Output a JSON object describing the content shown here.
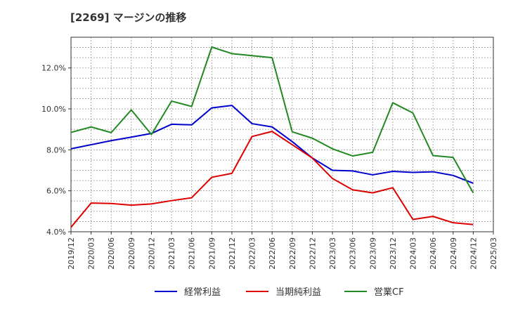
{
  "chart_data": {
    "type": "line",
    "title": "[2269]  マージンの推移",
    "xlabel": "",
    "ylabel": "",
    "x": [
      "2019/12",
      "2020/03",
      "2020/06",
      "2020/09",
      "2020/12",
      "2021/03",
      "2021/06",
      "2021/09",
      "2021/12",
      "2022/03",
      "2022/06",
      "2022/09",
      "2022/12",
      "2023/03",
      "2023/06",
      "2023/09",
      "2023/12",
      "2024/03",
      "2024/06",
      "2024/09",
      "2024/12",
      "2025/03"
    ],
    "ylim": [
      4.0,
      13.5
    ],
    "yticks": [
      4.0,
      6.0,
      8.0,
      10.0,
      12.0
    ],
    "ytick_labels": [
      "4.0%",
      "6.0%",
      "8.0%",
      "10.0%",
      "12.0%"
    ],
    "grid": true,
    "legend": "bottom",
    "series": [
      {
        "name": "経常利益",
        "color": "#0000cc",
        "values": [
          8.05,
          8.25,
          8.45,
          8.62,
          8.8,
          9.25,
          9.22,
          10.05,
          10.17,
          9.28,
          9.12,
          8.4,
          7.6,
          7.0,
          6.97,
          6.78,
          6.95,
          6.9,
          6.93,
          6.75,
          6.37,
          null
        ]
      },
      {
        "name": "当期純利益",
        "color": "#dd0000",
        "values": [
          4.22,
          5.4,
          5.38,
          5.3,
          5.36,
          5.52,
          5.66,
          6.66,
          6.85,
          8.65,
          8.9,
          8.25,
          7.6,
          6.6,
          6.05,
          5.9,
          6.15,
          4.6,
          4.75,
          4.44,
          4.35,
          null
        ]
      },
      {
        "name": "営業CF",
        "color": "#228822",
        "values": [
          8.85,
          9.12,
          8.84,
          9.95,
          8.75,
          10.38,
          10.12,
          13.02,
          12.7,
          12.6,
          12.5,
          8.88,
          8.57,
          8.05,
          7.7,
          7.88,
          10.3,
          9.8,
          7.72,
          7.63,
          5.9,
          null
        ]
      }
    ]
  }
}
